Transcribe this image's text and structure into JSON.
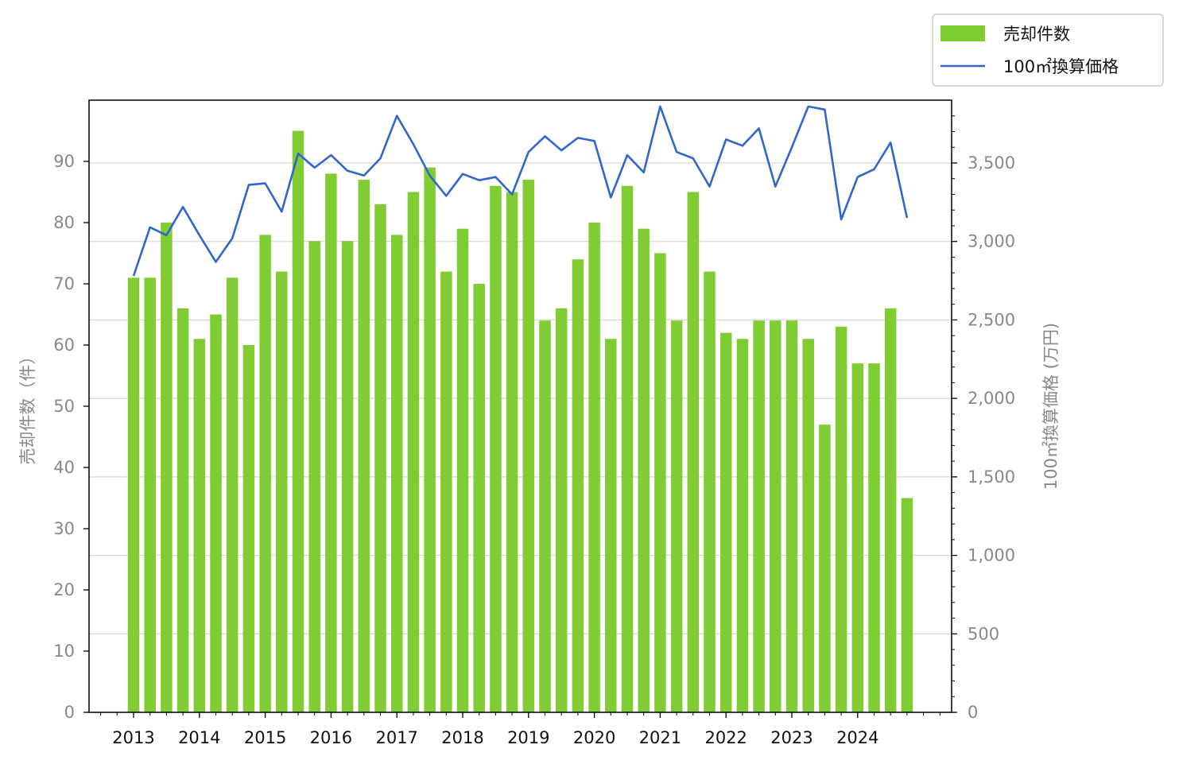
{
  "chart_data": {
    "type": "bar+line",
    "x_labels": [
      "2013",
      "2014",
      "2015",
      "2016",
      "2017",
      "2018",
      "2019",
      "2020",
      "2021",
      "2022",
      "2023",
      "2024"
    ],
    "periods_per_year": 4,
    "series": [
      {
        "name": "売却件数",
        "type": "bar",
        "axis": "left",
        "color": "#80cc33",
        "values": [
          71,
          71,
          80,
          66,
          61,
          65,
          71,
          60,
          78,
          72,
          95,
          77,
          88,
          77,
          87,
          83,
          78,
          85,
          89,
          72,
          79,
          70,
          86,
          85,
          87,
          64,
          66,
          74,
          80,
          61,
          86,
          79,
          75,
          64,
          85,
          72,
          62,
          61,
          64,
          64,
          64,
          61,
          47,
          63,
          57,
          57,
          66,
          35
        ]
      },
      {
        "name": "100㎡換算価格",
        "type": "line",
        "axis": "right",
        "color": "#3366cc",
        "values": [
          2780,
          3090,
          3040,
          3220,
          3040,
          2870,
          3020,
          3360,
          3370,
          3190,
          3560,
          3470,
          3550,
          3450,
          3420,
          3530,
          3800,
          3620,
          3420,
          3290,
          3430,
          3390,
          3410,
          3300,
          3570,
          3670,
          3580,
          3660,
          3640,
          3280,
          3550,
          3440,
          3860,
          3570,
          3530,
          3350,
          3650,
          3610,
          3720,
          3350,
          3600,
          3860,
          3840,
          3140,
          3410,
          3460,
          3630,
          3150
        ]
      }
    ],
    "y_left": {
      "label": "売却件数（件）",
      "min": 0,
      "max": 100,
      "ticks": [
        "0",
        "10",
        "20",
        "30",
        "40",
        "50",
        "60",
        "70",
        "80",
        "90"
      ]
    },
    "y_right": {
      "label": "100㎡換算価格 (万円)",
      "min": 0,
      "max": 3900,
      "ticks": [
        "0",
        "500",
        "1,000",
        "1,500",
        "2,000",
        "2,500",
        "3,000",
        "3,500"
      ]
    },
    "grid": "horizontal gridlines on right axis",
    "legend": "top-right, outside plot"
  }
}
